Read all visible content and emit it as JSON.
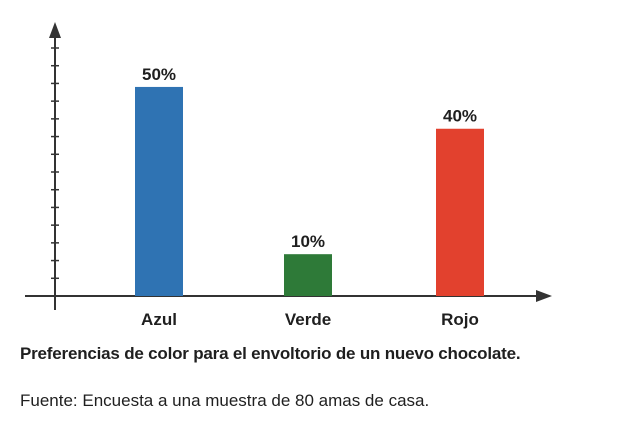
{
  "chart_data": {
    "type": "bar",
    "categories": [
      "Azul",
      "Verde",
      "Rojo"
    ],
    "values": [
      50,
      10,
      40
    ],
    "value_labels": [
      "50%",
      "10%",
      "40%"
    ],
    "colors": [
      "#2f73b3",
      "#2e7a38",
      "#e2412e"
    ],
    "title": "",
    "xlabel": "",
    "ylabel": "",
    "ylim": [
      0,
      60
    ],
    "y_ticks": 14,
    "grid": false
  },
  "caption": "Preferencias de color para el envoltorio de un nuevo chocolate.",
  "source": "Fuente: Encuesta a una muestra de 80 amas de casa.",
  "axis_color": "#333333",
  "text_color": "#1f1f1f"
}
